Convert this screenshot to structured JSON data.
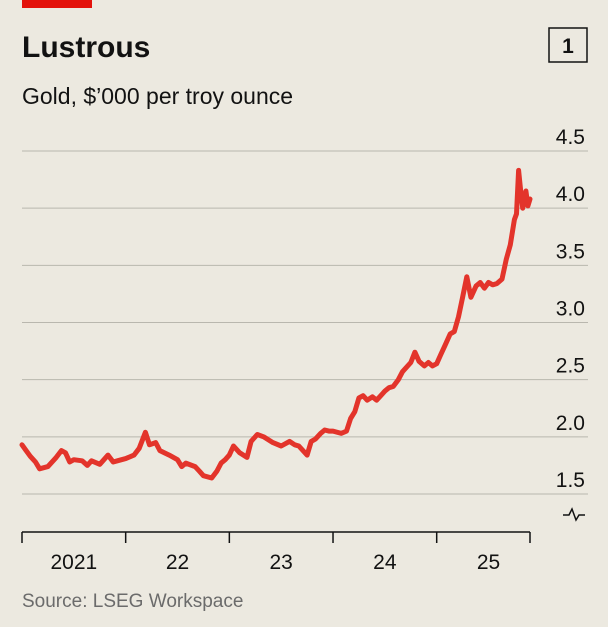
{
  "chart_data": {
    "type": "line",
    "title": "Lustrous",
    "chart_number": "1",
    "subtitle": "Gold, $’000 per troy ounce",
    "source": "Source: LSEG Workspace",
    "color": "#e3342b",
    "grid": true,
    "x": [
      2021.0,
      2021.04,
      2021.08,
      2021.13,
      2021.17,
      2021.25,
      2021.33,
      2021.38,
      2021.42,
      2021.46,
      2021.5,
      2021.58,
      2021.63,
      2021.67,
      2021.75,
      2021.83,
      2021.88,
      2021.92,
      2022.0,
      2022.08,
      2022.13,
      2022.19,
      2022.23,
      2022.29,
      2022.33,
      2022.42,
      2022.5,
      2022.54,
      2022.58,
      2022.67,
      2022.71,
      2022.75,
      2022.83,
      2022.88,
      2022.92,
      2022.96,
      2023.0,
      2023.04,
      2023.1,
      2023.17,
      2023.21,
      2023.27,
      2023.33,
      2023.42,
      2023.5,
      2023.58,
      2023.63,
      2023.67,
      2023.75,
      2023.79,
      2023.83,
      2023.88,
      2023.92,
      2023.96,
      2024.0,
      2024.08,
      2024.13,
      2024.17,
      2024.21,
      2024.25,
      2024.29,
      2024.33,
      2024.38,
      2024.42,
      2024.5,
      2024.54,
      2024.58,
      2024.63,
      2024.67,
      2024.75,
      2024.79,
      2024.83,
      2024.88,
      2024.92,
      2024.96,
      2025.0,
      2025.04,
      2025.08,
      2025.13,
      2025.17,
      2025.21,
      2025.25,
      2025.29,
      2025.33,
      2025.38,
      2025.42,
      2025.46,
      2025.5,
      2025.54,
      2025.58,
      2025.63,
      2025.67,
      2025.71,
      2025.75,
      2025.77,
      2025.79,
      2025.81,
      2025.83,
      2025.86,
      2025.88,
      2025.9
    ],
    "values": [
      1.93,
      1.88,
      1.83,
      1.78,
      1.72,
      1.74,
      1.82,
      1.88,
      1.86,
      1.78,
      1.8,
      1.79,
      1.75,
      1.79,
      1.76,
      1.84,
      1.78,
      1.79,
      1.81,
      1.84,
      1.9,
      2.04,
      1.93,
      1.95,
      1.88,
      1.84,
      1.8,
      1.74,
      1.77,
      1.74,
      1.7,
      1.66,
      1.64,
      1.7,
      1.77,
      1.8,
      1.84,
      1.92,
      1.86,
      1.82,
      1.96,
      2.02,
      2.0,
      1.95,
      1.92,
      1.96,
      1.93,
      1.92,
      1.84,
      1.96,
      1.98,
      2.03,
      2.06,
      2.05,
      2.05,
      2.03,
      2.05,
      2.16,
      2.22,
      2.34,
      2.36,
      2.32,
      2.35,
      2.32,
      2.4,
      2.43,
      2.44,
      2.5,
      2.57,
      2.65,
      2.74,
      2.66,
      2.62,
      2.65,
      2.62,
      2.64,
      2.72,
      2.8,
      2.9,
      2.92,
      3.05,
      3.22,
      3.4,
      3.22,
      3.32,
      3.35,
      3.3,
      3.35,
      3.33,
      3.34,
      3.38,
      3.55,
      3.68,
      3.9,
      3.95,
      4.33,
      4.15,
      4.0,
      4.15,
      4.02,
      4.08
    ],
    "xlim": [
      2021,
      2025.9
    ],
    "xticks": [
      2021,
      2022,
      2023,
      2024,
      2025
    ],
    "xlabels": [
      {
        "value": 2021.5,
        "label": "2021"
      },
      {
        "value": 2022.5,
        "label": "22"
      },
      {
        "value": 2023.5,
        "label": "23"
      },
      {
        "value": 2024.5,
        "label": "24"
      },
      {
        "value": 2025.5,
        "label": "25"
      }
    ],
    "ylim": [
      1.5,
      4.5
    ],
    "yticks": [
      1.5,
      {
        "value": 2,
        "label": "2.0"
      },
      2.5,
      {
        "value": 3,
        "label": "3.0"
      },
      3.5,
      {
        "value": 4,
        "label": "4.0"
      },
      4.5
    ]
  }
}
